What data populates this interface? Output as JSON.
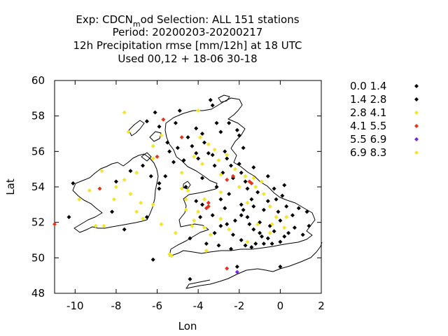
{
  "title": {
    "line1_pre": "Exp: CDCN",
    "line1_sub": "m",
    "line1_post": "od   Selection: ALL    151 stations",
    "line2": "Period: 20200203-20200217",
    "line3": "12h Precipitation rmse [mm/12h] at  18 UTC",
    "line4": "Used  00,12  + 18-06 30-18"
  },
  "chart_data": {
    "type": "scatter",
    "xlabel": "Lon",
    "ylabel": "Lat",
    "xlim": [
      -11,
      2
    ],
    "ylim": [
      48,
      60
    ],
    "xticks": [
      -10,
      -8,
      -6,
      -4,
      -2,
      0,
      2
    ],
    "yticks": [
      48,
      50,
      52,
      54,
      56,
      58,
      60
    ],
    "xtick_labels": [
      "-10",
      "-8",
      "-6",
      "-4",
      "-2",
      "0",
      "2"
    ],
    "ytick_labels": [
      "48",
      "50",
      "52",
      "54",
      "56",
      "58",
      "60"
    ],
    "legend_position": "right",
    "classes": [
      {
        "label": "0.0 1.4",
        "color": "#000000",
        "points": [
          [
            -10.1,
            54.2
          ],
          [
            -8.2,
            52.6
          ],
          [
            -7.6,
            51.6
          ],
          [
            -6.5,
            52.3
          ],
          [
            -6.2,
            49.9
          ],
          [
            -6.1,
            58.2
          ],
          [
            -5.9,
            57.4
          ],
          [
            -5.5,
            56.5
          ],
          [
            -5.4,
            56.0
          ],
          [
            -5.2,
            55.4
          ],
          [
            -5.0,
            56.2
          ],
          [
            -4.7,
            55.5
          ],
          [
            -4.3,
            56.3
          ],
          [
            -4.1,
            55.9
          ],
          [
            -3.7,
            56.5
          ],
          [
            -3.5,
            55.9
          ],
          [
            -3.4,
            58.9
          ],
          [
            -3.3,
            58.6
          ],
          [
            -3.2,
            55.2
          ],
          [
            -2.9,
            57.1
          ],
          [
            -2.7,
            56.0
          ],
          [
            -2.6,
            55.6
          ],
          [
            -2.4,
            55.2
          ],
          [
            -2.1,
            57.2
          ],
          [
            -2.0,
            56.9
          ],
          [
            -2.0,
            55.3
          ],
          [
            -1.9,
            54.8
          ],
          [
            -1.7,
            54.3
          ],
          [
            -1.6,
            53.9
          ],
          [
            -1.6,
            52.3
          ],
          [
            -1.4,
            53.3
          ],
          [
            -1.3,
            52.9
          ],
          [
            -1.3,
            51.6
          ],
          [
            -1.2,
            50.8
          ],
          [
            -1.1,
            53.7
          ],
          [
            -1.0,
            52.0
          ],
          [
            -0.9,
            51.2
          ],
          [
            -0.8,
            52.7
          ],
          [
            -0.6,
            53.2
          ],
          [
            -0.5,
            51.8
          ],
          [
            -0.3,
            53.9
          ],
          [
            -0.3,
            51.5
          ],
          [
            -0.2,
            53.3
          ],
          [
            -0.1,
            52.6
          ],
          [
            0.0,
            52.1
          ],
          [
            0.0,
            50.9
          ],
          [
            0.1,
            53.5
          ],
          [
            0.2,
            54.1
          ],
          [
            0.3,
            52.9
          ],
          [
            0.4,
            51.4
          ],
          [
            0.6,
            52.4
          ],
          [
            0.7,
            51.7
          ],
          [
            0.9,
            52.8
          ],
          [
            1.1,
            51.3
          ],
          [
            1.3,
            52.6
          ],
          [
            1.4,
            51.8
          ],
          [
            -4.1,
            53.2
          ],
          [
            -3.8,
            53.0
          ],
          [
            -3.9,
            52.3
          ],
          [
            -4.4,
            51.1
          ],
          [
            -3.2,
            51.4
          ],
          [
            -3.3,
            52.4
          ],
          [
            -2.9,
            53.3
          ],
          [
            -2.7,
            52.8
          ],
          [
            -2.5,
            53.6
          ],
          [
            -2.3,
            54.5
          ],
          [
            -3.1,
            54.0
          ],
          [
            -2.8,
            54.8
          ],
          [
            -4.6,
            54.0
          ],
          [
            -4.0,
            55.6
          ],
          [
            -3.3,
            55.8
          ],
          [
            -3.6,
            50.8
          ],
          [
            -3.0,
            50.7
          ],
          [
            -2.2,
            52.1
          ],
          [
            -2.6,
            51.9
          ],
          [
            -1.9,
            51.0
          ],
          [
            -2.4,
            50.5
          ],
          [
            -1.7,
            50.7
          ],
          [
            -0.4,
            50.8
          ],
          [
            0.2,
            51.2
          ],
          [
            -0.6,
            51.1
          ],
          [
            -0.8,
            50.8
          ],
          [
            -4.4,
            48.8
          ],
          [
            0.0,
            49.5
          ],
          [
            -5.6,
            54.6
          ],
          [
            -5.9,
            54.2
          ],
          [
            -6.7,
            55.2
          ],
          [
            -6.3,
            54.6
          ],
          [
            -5.9,
            53.9
          ],
          [
            -7.3,
            54.9
          ],
          [
            -1.0,
            51.4
          ],
          [
            -1.5,
            51.9
          ],
          [
            -1.9,
            53.0
          ],
          [
            -1.8,
            52.7
          ]
        ]
      },
      {
        "label": "1.4 2.8",
        "color": "#000000",
        "points": [
          [
            -10.3,
            52.3
          ],
          [
            -8.0,
            54.3
          ],
          [
            -6.5,
            57.7
          ],
          [
            -5.1,
            57.6
          ],
          [
            -4.9,
            58.3
          ],
          [
            -4.5,
            56.8
          ],
          [
            -4.1,
            57.3
          ],
          [
            -3.8,
            57.0
          ],
          [
            -3.1,
            57.6
          ],
          [
            -2.5,
            57.6
          ],
          [
            -1.8,
            56.2
          ],
          [
            -1.3,
            55.1
          ],
          [
            -0.6,
            54.6
          ],
          [
            -3.8,
            54.5
          ],
          [
            -2.9,
            51.8
          ],
          [
            -2.3,
            51.3
          ],
          [
            -1.4,
            50.6
          ],
          [
            -2.1,
            49.5
          ],
          [
            -1.9,
            52.4
          ]
        ]
      },
      {
        "label": "2.8 4.1",
        "color": "#f5e52a",
        "points": [
          [
            -9.3,
            53.8
          ],
          [
            -9.8,
            53.3
          ],
          [
            -8.7,
            54.9
          ],
          [
            -8.1,
            53.3
          ],
          [
            -8.0,
            54.0
          ],
          [
            -7.3,
            53.6
          ],
          [
            -7.0,
            54.8
          ],
          [
            -6.8,
            53.1
          ],
          [
            -6.2,
            53.0
          ],
          [
            -6.2,
            55.6
          ],
          [
            -7.6,
            54.4
          ],
          [
            -8.6,
            51.8
          ],
          [
            -9.0,
            51.8
          ],
          [
            -7.0,
            52.6
          ],
          [
            -6.7,
            52.2
          ],
          [
            -5.8,
            51.9
          ],
          [
            -4.8,
            54.8
          ],
          [
            -4.6,
            52.7
          ],
          [
            -4.6,
            53.3
          ],
          [
            -4.0,
            52.6
          ],
          [
            -3.7,
            51.7
          ],
          [
            -4.3,
            51.8
          ],
          [
            -4.5,
            53.8
          ],
          [
            -3.9,
            56.8
          ],
          [
            -3.5,
            56.4
          ],
          [
            -3.2,
            56.1
          ],
          [
            -3.0,
            55.5
          ],
          [
            -2.9,
            54.7
          ],
          [
            -2.2,
            55.0
          ],
          [
            -1.7,
            54.6
          ],
          [
            -1.2,
            54.0
          ],
          [
            -0.9,
            54.3
          ],
          [
            -0.5,
            52.9
          ],
          [
            -0.8,
            53.6
          ],
          [
            -0.2,
            52.3
          ],
          [
            -0.5,
            51.4
          ],
          [
            -1.6,
            53.1
          ],
          [
            -2.5,
            51.6
          ],
          [
            -2.9,
            52.2
          ],
          [
            -3.6,
            50.4
          ],
          [
            -5.4,
            50.2
          ],
          [
            -5.1,
            51.4
          ],
          [
            -4.2,
            52.1
          ],
          [
            -2.6,
            55.8
          ],
          [
            0.3,
            52.3
          ],
          [
            -5.8,
            56.9
          ],
          [
            -4.0,
            58.3
          ],
          [
            -4.2,
            55.7
          ],
          [
            -3.8,
            55.3
          ],
          [
            -4.8,
            53.9
          ],
          [
            -5.3,
            50.1
          ],
          [
            -6.2,
            56.3
          ],
          [
            -7.4,
            57.1
          ],
          [
            -7.6,
            58.2
          ],
          [
            -3.7,
            53.3
          ],
          [
            -2.9,
            53.7
          ],
          [
            -3.4,
            51.3
          ],
          [
            -1.6,
            50.9
          ],
          [
            -1.1,
            51.9
          ],
          [
            -0.4,
            51.9
          ],
          [
            0.2,
            51.7
          ],
          [
            -2.0,
            54.0
          ],
          [
            -1.3,
            54.5
          ]
        ]
      },
      {
        "label": "4.1 5.5",
        "color": "#e8321e",
        "points": [
          [
            -11.0,
            51.9
          ],
          [
            -8.8,
            53.9
          ],
          [
            -6.0,
            55.7
          ],
          [
            -5.7,
            57.8
          ],
          [
            -4.8,
            56.8
          ],
          [
            -3.6,
            52.8
          ],
          [
            -3.5,
            52.9
          ],
          [
            -3.5,
            53.1
          ],
          [
            -2.6,
            54.4
          ],
          [
            -2.3,
            54.6
          ],
          [
            -1.5,
            54.3
          ],
          [
            -1.4,
            54.2
          ],
          [
            -2.6,
            49.4
          ]
        ]
      },
      {
        "label": "5.5 6.9",
        "color": "#7a28d6",
        "points": [
          [
            -2.1,
            49.2
          ]
        ]
      },
      {
        "label": "6.9 8.3",
        "color": "#f5e52a",
        "points": []
      }
    ]
  }
}
